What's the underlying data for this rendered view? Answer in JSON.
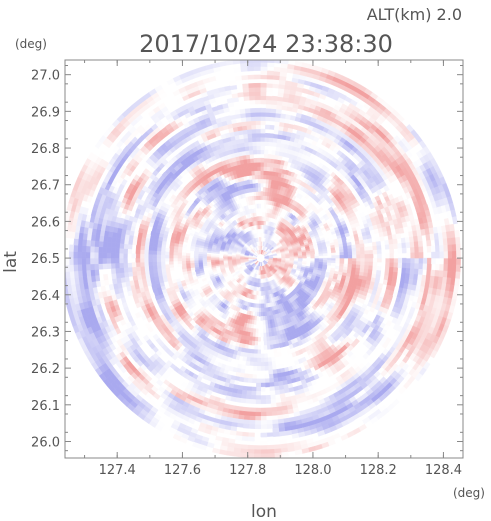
{
  "header": {
    "timestamp": "2017/10/24 23:38:30",
    "altitude_label": "ALT(km) 2.0"
  },
  "colors": {
    "positive": "#f2a0a0",
    "negative": "#a9a9ef",
    "neutral": "#ffffff",
    "axis": "#888888",
    "text": "#555555"
  },
  "chart_data": {
    "type": "heatmap",
    "title": "2017/10/24 23:38:30",
    "subtitle": "ALT(km) 2.0",
    "xlabel": "lon",
    "ylabel": "lat",
    "x_unit": "(deg)",
    "y_unit": "(deg)",
    "xlim": [
      127.24,
      128.46
    ],
    "ylim": [
      25.955,
      27.04
    ],
    "x_ticks": [
      127.4,
      127.6,
      127.8,
      128.0,
      128.2,
      128.4
    ],
    "x_tick_labels": [
      "127.4",
      "127.6",
      "127.8",
      "128.0",
      "128.2",
      "128.4"
    ],
    "y_ticks": [
      26.0,
      26.1,
      26.2,
      26.3,
      26.4,
      26.5,
      26.6,
      26.7,
      26.8,
      26.9,
      27.0
    ],
    "y_tick_labels": [
      "26.0",
      "26.1",
      "26.2",
      "26.3",
      "26.4",
      "26.5",
      "26.6",
      "26.7",
      "26.8",
      "26.9",
      "27.0"
    ],
    "center": {
      "lon": 127.84,
      "lat": 26.5
    },
    "radius_deg_lat": 0.545,
    "colorscale": "diverging red-white-blue",
    "grid": false
  }
}
